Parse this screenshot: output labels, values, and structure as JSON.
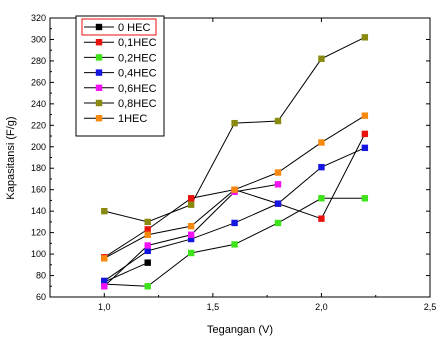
{
  "chart_data": {
    "type": "line",
    "title": "",
    "xlabel": "Tegangan (V)",
    "ylabel": "Kapasitansi (F/g)",
    "xlim": [
      0.75,
      2.5
    ],
    "ylim": [
      60,
      320
    ],
    "xticks": [
      1.0,
      1.5,
      2.0,
      2.5
    ],
    "xtick_labels": [
      "1,0",
      "1,5",
      "2,0",
      "2,5"
    ],
    "yticks": [
      60,
      80,
      100,
      120,
      140,
      160,
      180,
      200,
      220,
      240,
      260,
      280,
      300,
      320
    ],
    "ytick_labels": [
      "60",
      "80",
      "100",
      "120",
      "140",
      "160",
      "180",
      "200",
      "220",
      "240",
      "260",
      "280",
      "300",
      "320"
    ],
    "grid": false,
    "legend_position": "top-left",
    "x": [
      1.0,
      1.2,
      1.4,
      1.6,
      1.8,
      2.0,
      2.2
    ],
    "series": [
      {
        "name": "0 HEC",
        "color": "#000000",
        "values": [
          74,
          92,
          null,
          null,
          null,
          null,
          null
        ]
      },
      {
        "name": "0,1HEC",
        "color": "#e8120f",
        "values": [
          97,
          123,
          152,
          160,
          147,
          133,
          212
        ]
      },
      {
        "name": "0,2HEC",
        "color": "#3fe31a",
        "values": [
          72,
          70,
          101,
          109,
          129,
          152,
          152
        ]
      },
      {
        "name": "0,4HEC",
        "color": "#1515e0",
        "values": [
          75,
          103,
          114,
          129,
          147,
          181,
          199
        ]
      },
      {
        "name": "0,6HEC",
        "color": "#f212f2",
        "values": [
          70,
          108,
          118,
          158,
          165,
          null,
          null
        ]
      },
      {
        "name": "0,8HEC",
        "color": "#8a8a10",
        "values": [
          140,
          130,
          146,
          222,
          224,
          282,
          302
        ]
      },
      {
        "name": "1HEC",
        "color": "#f7890f",
        "values": [
          96,
          118,
          126,
          160,
          176,
          204,
          229
        ]
      }
    ]
  }
}
